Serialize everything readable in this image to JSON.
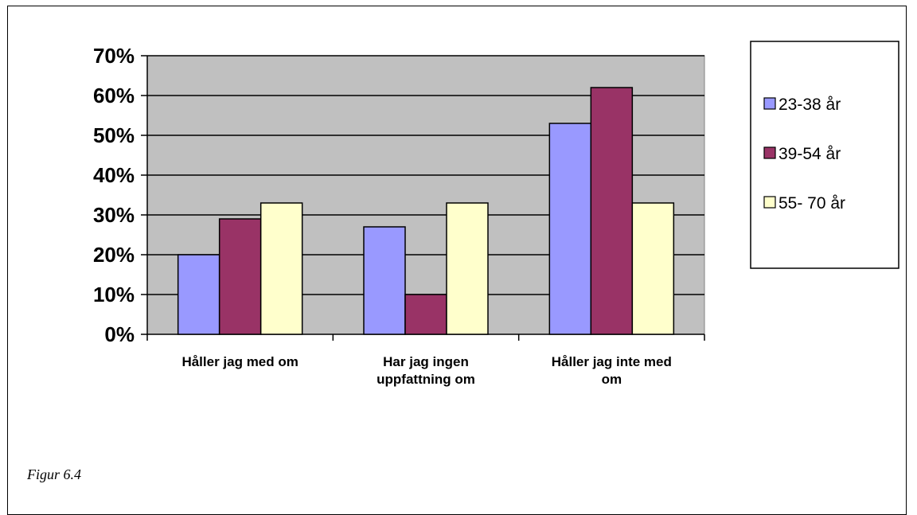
{
  "chart_data": {
    "type": "bar",
    "categories": [
      [
        "Håller jag med om"
      ],
      [
        "Har jag ingen",
        "uppfattning om"
      ],
      [
        "Håller jag inte med",
        "om"
      ]
    ],
    "series": [
      {
        "name": "23-38 år",
        "color": "#9999ff",
        "values": [
          20,
          27,
          53
        ]
      },
      {
        "name": "39-54 år",
        "color": "#993366",
        "values": [
          29,
          10,
          62
        ]
      },
      {
        "name": "55- 70 år",
        "color": "#ffffcc",
        "values": [
          33,
          33,
          33
        ]
      }
    ],
    "yticks": [
      "0%",
      "10%",
      "20%",
      "30%",
      "40%",
      "50%",
      "60%",
      "70%"
    ],
    "ylim": [
      0,
      70
    ],
    "grid": true,
    "plot_background": "#c0c0c0",
    "legend_position": "right"
  },
  "caption": "Figur 6.4"
}
